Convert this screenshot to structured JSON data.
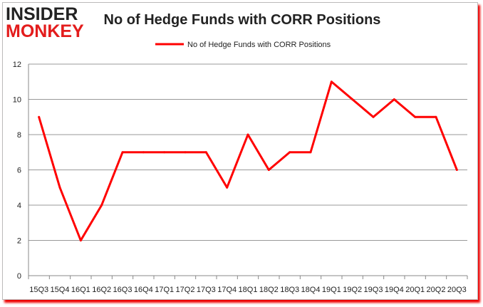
{
  "logo": {
    "line1": "INSIDER",
    "line2": "MONKEY"
  },
  "chart_data": {
    "type": "line",
    "title": "No of Hedge Funds with CORR Positions",
    "xlabel": "",
    "ylabel": "",
    "categories": [
      "15Q3",
      "15Q4",
      "16Q1",
      "16Q2",
      "16Q3",
      "16Q4",
      "17Q1",
      "17Q2",
      "17Q3",
      "17Q4",
      "18Q1",
      "18Q2",
      "18Q3",
      "18Q4",
      "19Q1",
      "19Q2",
      "19Q3",
      "19Q4",
      "20Q1",
      "20Q2",
      "20Q3"
    ],
    "series": [
      {
        "name": "No of Hedge Funds with CORR Positions",
        "values": [
          9,
          5,
          2,
          4,
          7,
          7,
          7,
          7,
          7,
          5,
          8,
          6,
          7,
          7,
          11,
          10,
          9,
          10,
          9,
          9,
          6
        ],
        "color": "#ff0000"
      }
    ],
    "ylim": [
      0,
      12
    ],
    "yticks": [
      0,
      2,
      4,
      6,
      8,
      10,
      12
    ],
    "grid": true,
    "legend": "top-center"
  }
}
